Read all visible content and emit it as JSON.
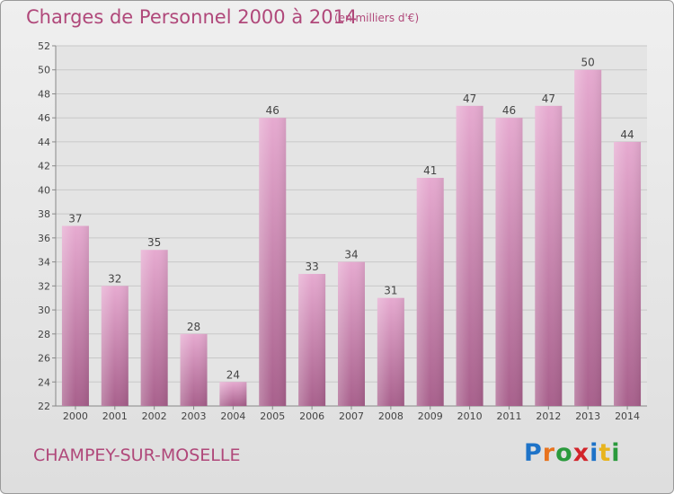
{
  "title": "Charges de Personnel 2000 à 2014",
  "unit_note": "(en milliers d'€)",
  "commune": "CHAMPEY-SUR-MOSELLE",
  "logo": {
    "text": "Proxiti",
    "letter_colors": [
      "#1e73c8",
      "#e8731e",
      "#2a9a3c",
      "#d2242a",
      "#1e73c8",
      "#e8b41e",
      "#2a9a3c"
    ]
  },
  "colors": {
    "bar_top": "#e6aad0",
    "bar_bottom": "#a8608c",
    "title": "#b0487a",
    "grid": "#c8c8c8"
  },
  "chart_data": {
    "type": "bar",
    "title": "Charges de Personnel 2000 à 2014",
    "subtitle": "(en milliers d'€)",
    "categories": [
      "2000",
      "2001",
      "2002",
      "2003",
      "2004",
      "2005",
      "2006",
      "2007",
      "2008",
      "2009",
      "2010",
      "2011",
      "2012",
      "2013",
      "2014"
    ],
    "values": [
      37,
      32,
      35,
      28,
      24,
      46,
      33,
      34,
      31,
      41,
      47,
      46,
      47,
      50,
      44
    ],
    "ylim": [
      22,
      52
    ],
    "yticks": [
      22,
      24,
      26,
      28,
      30,
      32,
      34,
      36,
      38,
      40,
      42,
      44,
      46,
      48,
      50,
      52
    ],
    "grid": true,
    "legend": "none"
  }
}
